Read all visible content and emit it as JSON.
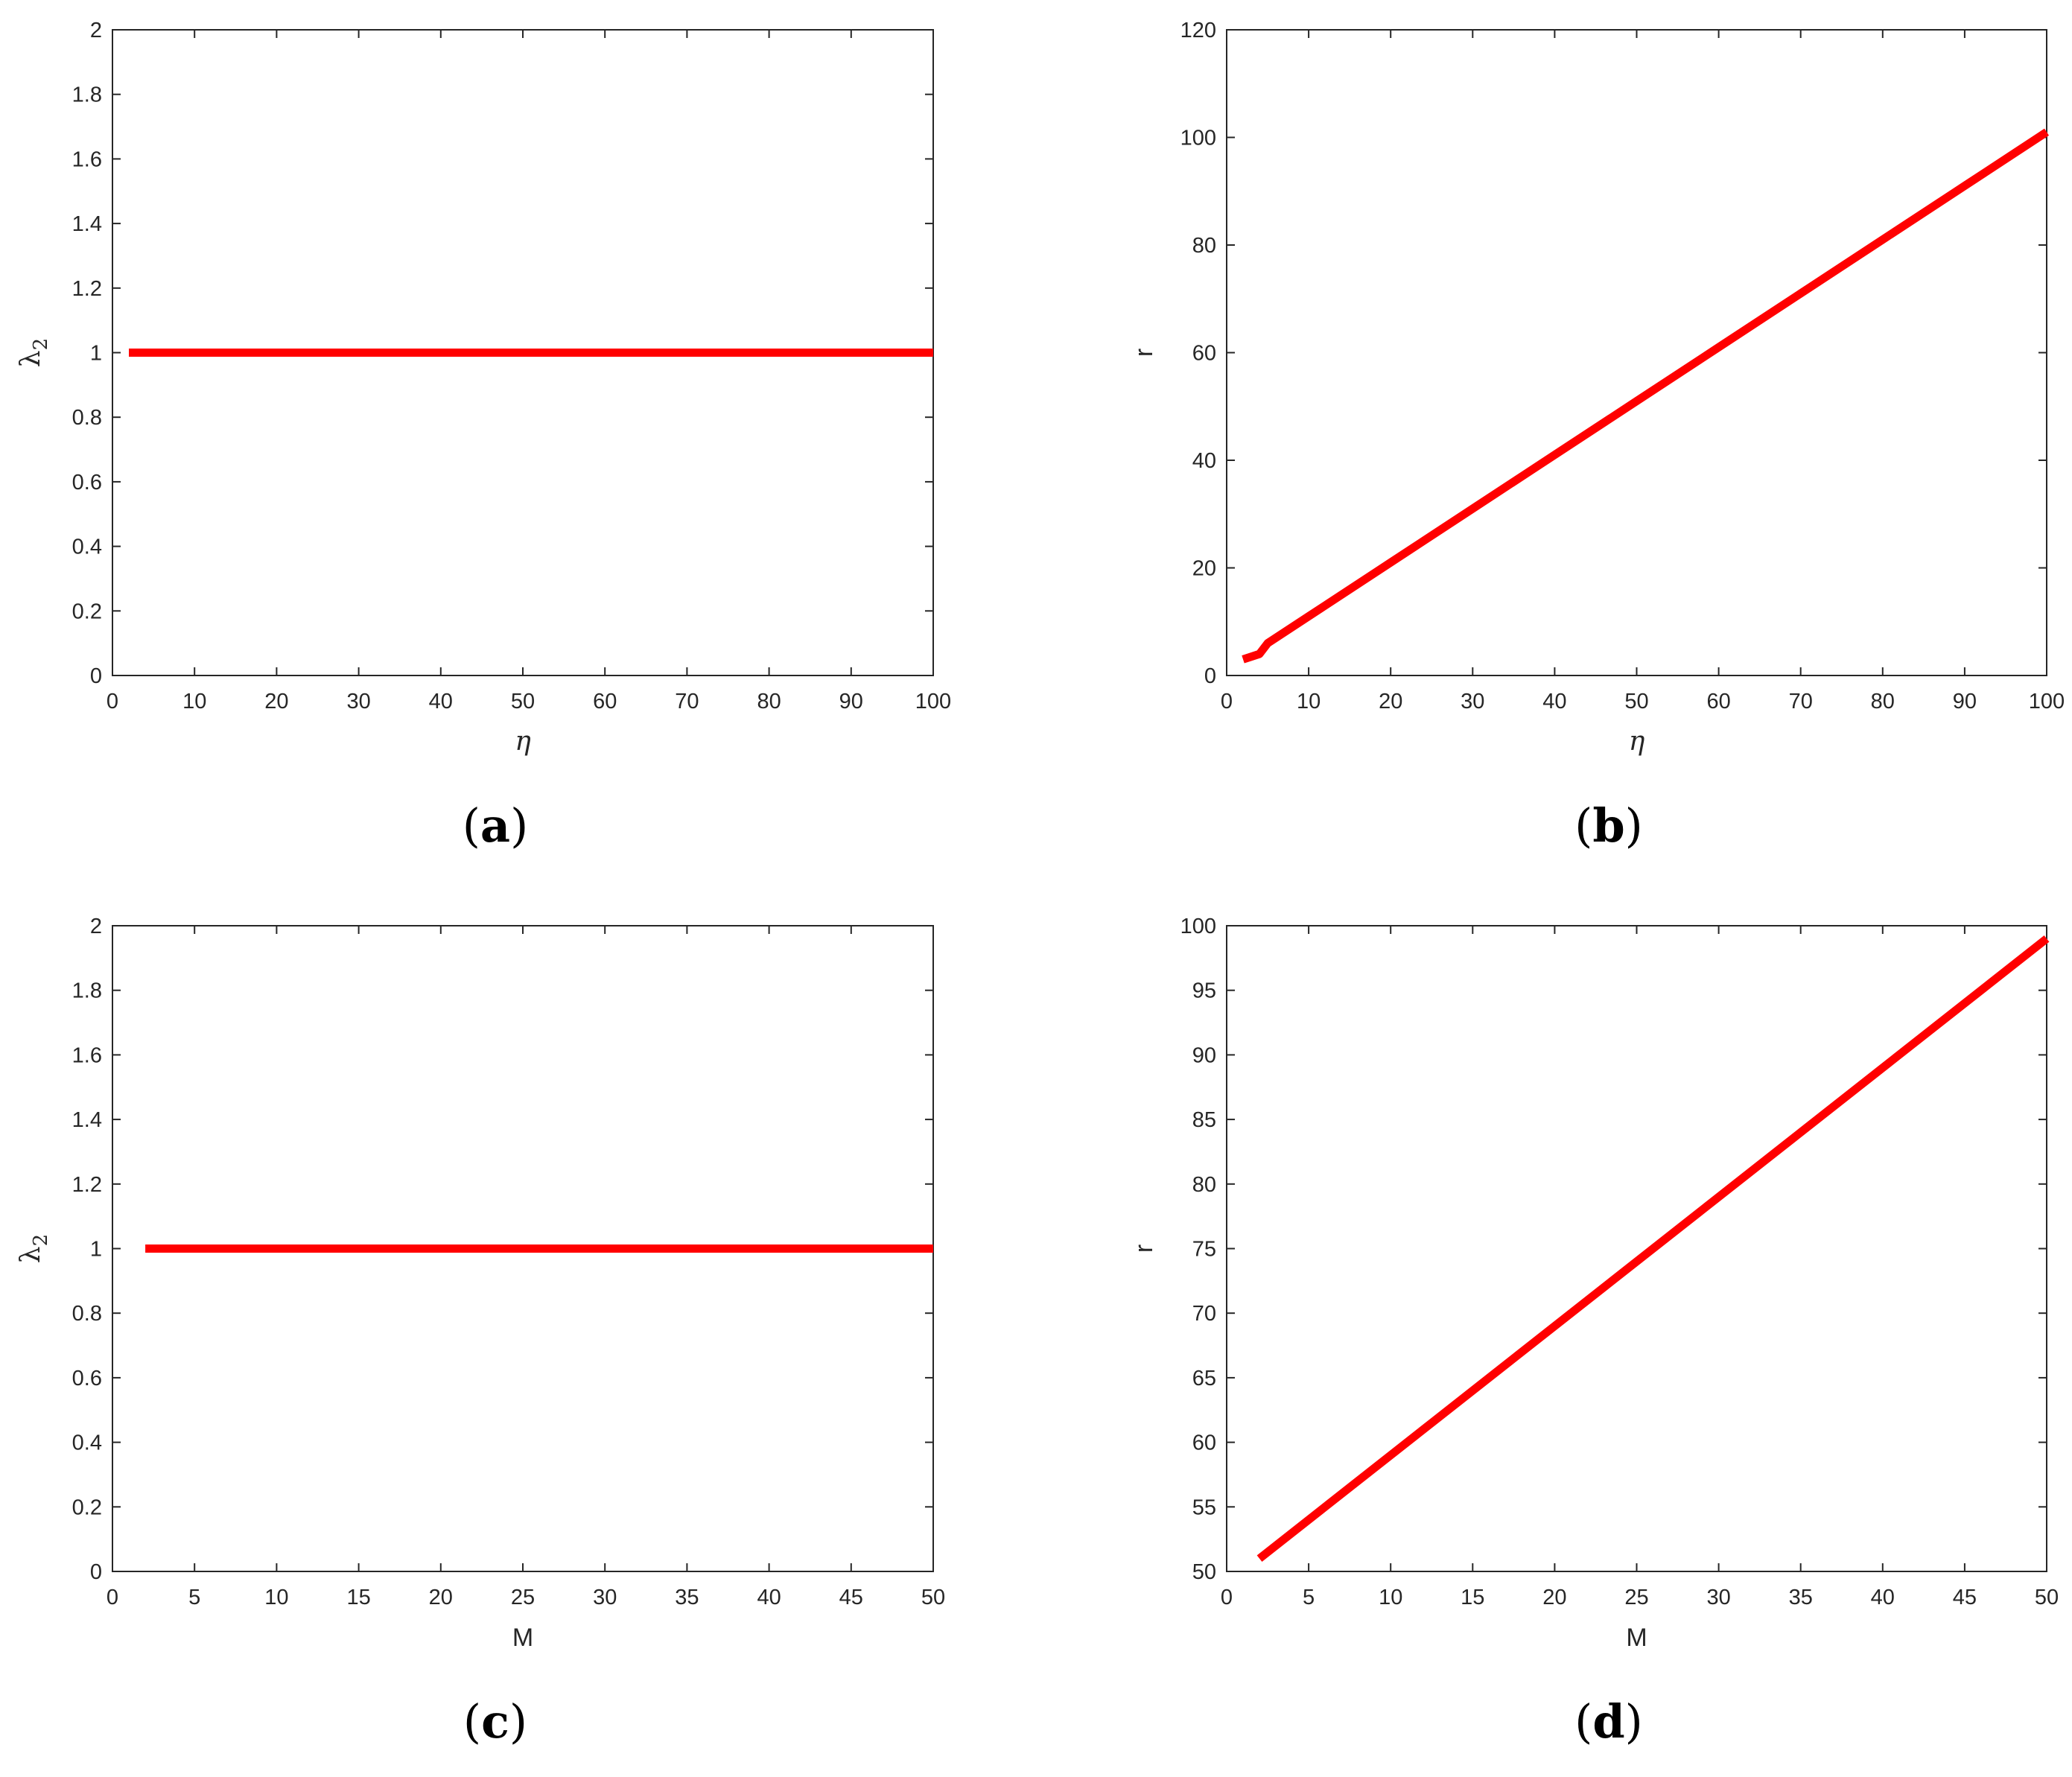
{
  "colors": {
    "series": "#ff0000",
    "axes": "#262626",
    "background": "#ffffff"
  },
  "chart_data": [
    {
      "panel": "(a)",
      "panel_letter": "a",
      "type": "line",
      "xlabel": "η",
      "ylabel": "λ",
      "ylabel_subscript": "2",
      "xlim": [
        0,
        100
      ],
      "ylim": [
        0,
        2
      ],
      "xticks": [
        0,
        10,
        20,
        30,
        40,
        50,
        60,
        70,
        80,
        90,
        100
      ],
      "yticks": [
        0,
        0.2,
        0.4,
        0.6,
        0.8,
        1,
        1.2,
        1.4,
        1.6,
        1.8,
        2
      ],
      "xtick_labels": [
        "0",
        "10",
        "20",
        "30",
        "40",
        "50",
        "60",
        "70",
        "80",
        "90",
        "100"
      ],
      "ytick_labels": [
        "0",
        "0.2",
        "0.4",
        "0.6",
        "0.8",
        "1",
        "1.2",
        "1.4",
        "1.6",
        "1.8",
        "2"
      ],
      "grid": false,
      "series": [
        {
          "x": [
            2,
            100
          ],
          "y": [
            1,
            1
          ]
        }
      ]
    },
    {
      "panel": "(b)",
      "panel_letter": "b",
      "type": "line",
      "xlabel": "η",
      "ylabel": "r",
      "ylabel_subscript": "",
      "xlim": [
        0,
        100
      ],
      "ylim": [
        0,
        120
      ],
      "xticks": [
        0,
        10,
        20,
        30,
        40,
        50,
        60,
        70,
        80,
        90,
        100
      ],
      "yticks": [
        0,
        20,
        40,
        60,
        80,
        100,
        120
      ],
      "xtick_labels": [
        "0",
        "10",
        "20",
        "30",
        "40",
        "50",
        "60",
        "70",
        "80",
        "90",
        "100"
      ],
      "ytick_labels": [
        "0",
        "20",
        "40",
        "60",
        "80",
        "100",
        "120"
      ],
      "grid": false,
      "series": [
        {
          "x": [
            2,
            4,
            5,
            10,
            20,
            30,
            40,
            50,
            60,
            70,
            80,
            90,
            100
          ],
          "y": [
            3,
            4,
            6,
            11,
            21,
            31,
            41,
            51,
            61,
            71,
            81,
            91,
            101
          ]
        }
      ]
    },
    {
      "panel": "(c)",
      "panel_letter": "c",
      "type": "line",
      "xlabel": "M",
      "ylabel": "λ",
      "ylabel_subscript": "2",
      "xlim": [
        0,
        50
      ],
      "ylim": [
        0,
        2
      ],
      "xticks": [
        0,
        5,
        10,
        15,
        20,
        25,
        30,
        35,
        40,
        45,
        50
      ],
      "yticks": [
        0,
        0.2,
        0.4,
        0.6,
        0.8,
        1,
        1.2,
        1.4,
        1.6,
        1.8,
        2
      ],
      "xtick_labels": [
        "0",
        "5",
        "10",
        "15",
        "20",
        "25",
        "30",
        "35",
        "40",
        "45",
        "50"
      ],
      "ytick_labels": [
        "0",
        "0.2",
        "0.4",
        "0.6",
        "0.8",
        "1",
        "1.2",
        "1.4",
        "1.6",
        "1.8",
        "2"
      ],
      "grid": false,
      "series": [
        {
          "x": [
            2,
            50
          ],
          "y": [
            1,
            1
          ]
        }
      ]
    },
    {
      "panel": "(d)",
      "panel_letter": "d",
      "type": "line",
      "xlabel": "M",
      "ylabel": "r",
      "ylabel_subscript": "",
      "xlim": [
        0,
        50
      ],
      "ylim": [
        50,
        100
      ],
      "xticks": [
        0,
        5,
        10,
        15,
        20,
        25,
        30,
        35,
        40,
        45,
        50
      ],
      "yticks": [
        50,
        55,
        60,
        65,
        70,
        75,
        80,
        85,
        90,
        95,
        100
      ],
      "xtick_labels": [
        "0",
        "5",
        "10",
        "15",
        "20",
        "25",
        "30",
        "35",
        "40",
        "45",
        "50"
      ],
      "ytick_labels": [
        "50",
        "55",
        "60",
        "65",
        "70",
        "75",
        "80",
        "85",
        "90",
        "95",
        "100"
      ],
      "grid": false,
      "series": [
        {
          "x": [
            2,
            50
          ],
          "y": [
            51,
            99
          ]
        }
      ]
    }
  ]
}
